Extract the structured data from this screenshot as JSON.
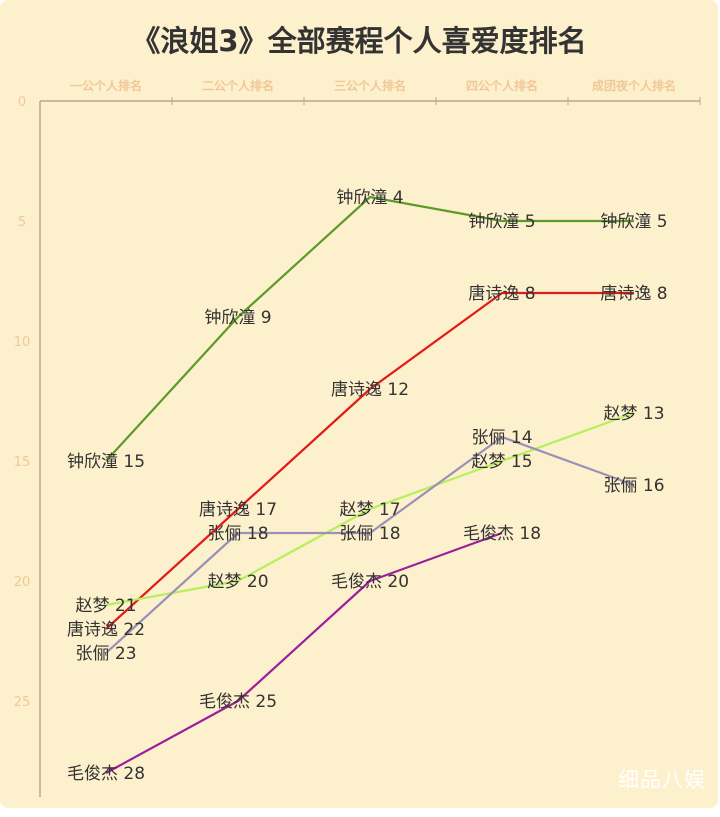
{
  "title": "《浪姐3》全部赛程个人喜爱度排名",
  "watermark": "细品八娱",
  "chart_data": {
    "type": "line",
    "categories": [
      "一公个人排名",
      "二公个人排名",
      "三公个人排名",
      "四公个人排名",
      "成团夜个人排名"
    ],
    "y_axis": {
      "reversed": true,
      "range": [
        0,
        29
      ],
      "ticks": [
        0,
        5,
        10,
        15,
        20,
        25
      ]
    },
    "x_axis_position": "top",
    "grid": false,
    "series": [
      {
        "name": "钟欣潼",
        "color": "#5c9a2a",
        "values": [
          15,
          9,
          4,
          5,
          5
        ]
      },
      {
        "name": "唐诗逸",
        "color": "#e01b1b",
        "values": [
          22,
          17,
          12,
          8,
          8
        ]
      },
      {
        "name": "赵梦",
        "color": "#b4f05a",
        "values": [
          21,
          20,
          17,
          15,
          13
        ]
      },
      {
        "name": "张俪",
        "color": "#9a90b8",
        "values": [
          23,
          18,
          18,
          14,
          16
        ]
      },
      {
        "name": "毛俊杰",
        "color": "#9c1f9c",
        "values": [
          28,
          25,
          20,
          18,
          null
        ]
      }
    ]
  },
  "colors": {
    "background": "#fdf0cc",
    "axis": "#b9a889",
    "tick_label": "#f0c89a",
    "category_label": "#f0c89a",
    "point_label": "#333333"
  }
}
